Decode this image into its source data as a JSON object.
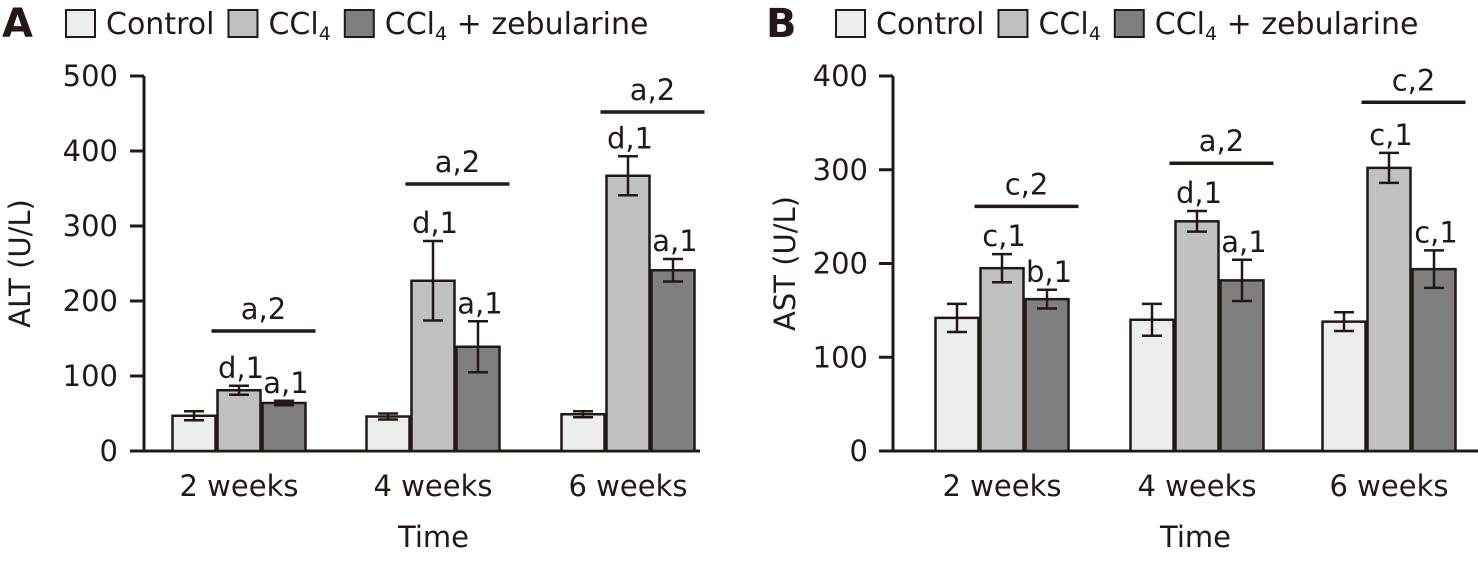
{
  "chart_data": [
    {
      "panel": "A",
      "type": "bar",
      "title": "",
      "xlabel": "Time",
      "ylabel": "ALT (U/L)",
      "ylim": [
        0,
        500
      ],
      "yticks": [
        0,
        100,
        200,
        300,
        400,
        500
      ],
      "grid": false,
      "legend_position": "top",
      "categories": [
        "2 weeks",
        "4 weeks",
        "6 weeks"
      ],
      "series": [
        {
          "name": "Control",
          "legend_main": "Control",
          "legend_sub": "",
          "legend_suffix": "",
          "color": "#eceeed",
          "values": [
            47,
            46,
            49
          ],
          "errors": [
            6,
            4,
            4
          ],
          "labels": [
            "",
            "",
            ""
          ]
        },
        {
          "name": "CCl4",
          "legend_main": "CCl",
          "legend_sub": "4",
          "legend_suffix": "",
          "color": "#bfc1c0",
          "values": [
            81,
            227,
            367
          ],
          "errors": [
            6,
            53,
            26
          ],
          "labels": [
            "d,1",
            "d,1",
            "d,1"
          ]
        },
        {
          "name": "CCl4 + zebularine",
          "legend_main": "CCl",
          "legend_sub": "4",
          "legend_suffix": " + zebularine",
          "color": "#7f7f7f",
          "values": [
            64,
            139,
            241
          ],
          "errors": [
            3,
            34,
            15
          ],
          "labels": [
            "a,1",
            "a,1",
            "a,1"
          ]
        }
      ],
      "brackets": [
        {
          "category": "2 weeks",
          "label": "a,2",
          "level": 160
        },
        {
          "category": "4 weeks",
          "label": "a,2",
          "level": 356
        },
        {
          "category": "6 weeks",
          "label": "a,2",
          "level": 452
        }
      ]
    },
    {
      "panel": "B",
      "type": "bar",
      "title": "",
      "xlabel": "Time",
      "ylabel": "AST (U/L)",
      "ylim": [
        0,
        400
      ],
      "yticks": [
        0,
        100,
        200,
        300,
        400
      ],
      "grid": false,
      "legend_position": "top",
      "categories": [
        "2 weeks",
        "4 weeks",
        "6 weeks"
      ],
      "series": [
        {
          "name": "Control",
          "legend_main": "Control",
          "legend_sub": "",
          "legend_suffix": "",
          "color": "#eceeed",
          "values": [
            142,
            140,
            138
          ],
          "errors": [
            15,
            17,
            10
          ],
          "labels": [
            "",
            "",
            ""
          ]
        },
        {
          "name": "CCl4",
          "legend_main": "CCl",
          "legend_sub": "4",
          "legend_suffix": "",
          "color": "#bfc1c0",
          "values": [
            195,
            245,
            302
          ],
          "errors": [
            15,
            11,
            16
          ],
          "labels": [
            "c,1",
            "d,1",
            "c,1"
          ]
        },
        {
          "name": "CCl4 + zebularine",
          "legend_main": "CCl",
          "legend_sub": "4",
          "legend_suffix": " + zebularine",
          "color": "#7f7f7f",
          "values": [
            162,
            182,
            194
          ],
          "errors": [
            10,
            22,
            20
          ],
          "labels": [
            "b,1",
            "a,1",
            "c,1"
          ]
        }
      ],
      "brackets": [
        {
          "category": "2 weeks",
          "label": "c,2",
          "level": 261
        },
        {
          "category": "4 weeks",
          "label": "a,2",
          "level": 307
        },
        {
          "category": "6 weeks",
          "label": "c,2",
          "level": 372
        }
      ]
    }
  ]
}
